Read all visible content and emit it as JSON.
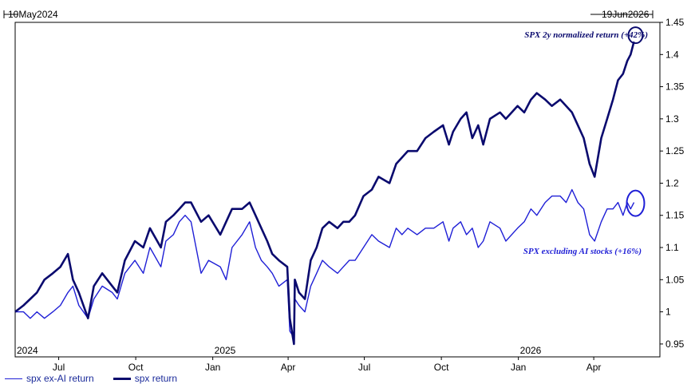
{
  "range": {
    "start": "10May2024",
    "end": "19Jun2026"
  },
  "colors": {
    "spx": "#0a0a6e",
    "exai": "#1f1fd6",
    "axis": "#000000"
  },
  "chart_data": {
    "type": "line",
    "xlim": [
      "2024-05-10",
      "2026-06-19"
    ],
    "ylim": [
      0.93,
      1.45
    ],
    "y_ticks": [
      0.95,
      1,
      1.05,
      1.1,
      1.15,
      1.2,
      1.25,
      1.3,
      1.35,
      1.4,
      1.45
    ],
    "y_tick_labels": [
      "0.95",
      "1",
      "1.05",
      "1.1",
      "1.15",
      "1.2",
      "1.25",
      "1.3",
      "1.35",
      "1.4",
      "1.45"
    ],
    "x_ticks": [
      {
        "date": "2024-07-01",
        "label": "Jul"
      },
      {
        "date": "2024-10-01",
        "label": "Oct"
      },
      {
        "date": "2025-01-01",
        "label": "Jan"
      },
      {
        "date": "2025-04-01",
        "label": "Apr"
      },
      {
        "date": "2025-07-01",
        "label": "Jul"
      },
      {
        "date": "2025-10-01",
        "label": "Oct"
      },
      {
        "date": "2026-01-01",
        "label": "Jan"
      },
      {
        "date": "2026-04-01",
        "label": "Apr"
      }
    ],
    "year_labels": [
      {
        "date": "2024-01-01",
        "label": "2024"
      },
      {
        "date": "2025-01-01",
        "label": "2025"
      },
      {
        "date": "2026-01-01",
        "label": "2026"
      }
    ],
    "grid": false,
    "legend_position": "bottom-left",
    "annotations": [
      {
        "text": "SPX 2y normalized return (+42%)",
        "series": "spx return"
      },
      {
        "text": "SPX excluding AI stocks (+16%)",
        "series": "spx ex-AI return"
      }
    ],
    "series": [
      {
        "name": "spx ex-AI return",
        "x": [
          "2024-05-10",
          "2024-05-20",
          "2024-05-28",
          "2024-06-05",
          "2024-06-14",
          "2024-06-24",
          "2024-07-03",
          "2024-07-12",
          "2024-07-18",
          "2024-07-25",
          "2024-08-05",
          "2024-08-12",
          "2024-08-22",
          "2024-09-03",
          "2024-09-09",
          "2024-09-18",
          "2024-09-30",
          "2024-10-10",
          "2024-10-18",
          "2024-10-31",
          "2024-11-06",
          "2024-11-15",
          "2024-11-22",
          "2024-11-29",
          "2024-12-06",
          "2024-12-18",
          "2024-12-27",
          "2025-01-10",
          "2025-01-17",
          "2025-01-24",
          "2025-02-05",
          "2025-02-14",
          "2025-02-21",
          "2025-02-28",
          "2025-03-07",
          "2025-03-13",
          "2025-03-21",
          "2025-03-31",
          "2025-04-03",
          "2025-04-08",
          "2025-04-09",
          "2025-04-14",
          "2025-04-21",
          "2025-04-28",
          "2025-05-05",
          "2025-05-12",
          "2025-05-20",
          "2025-05-30",
          "2025-06-06",
          "2025-06-13",
          "2025-06-20",
          "2025-06-30",
          "2025-07-10",
          "2025-07-18",
          "2025-07-31",
          "2025-08-08",
          "2025-08-15",
          "2025-08-22",
          "2025-09-02",
          "2025-09-12",
          "2025-09-22",
          "2025-10-03",
          "2025-10-10",
          "2025-10-15",
          "2025-10-24",
          "2025-10-31",
          "2025-11-07",
          "2025-11-14",
          "2025-11-20",
          "2025-11-28",
          "2025-12-10",
          "2025-12-17",
          "2025-12-31",
          "2026-01-08",
          "2026-01-16",
          "2026-01-23",
          "2026-02-02",
          "2026-02-10",
          "2026-02-20",
          "2026-02-27",
          "2026-03-06",
          "2026-03-13",
          "2026-03-20",
          "2026-03-27",
          "2026-04-02",
          "2026-04-10",
          "2026-04-17",
          "2026-04-24",
          "2026-04-30",
          "2026-05-06",
          "2026-05-11",
          "2026-05-15",
          "2026-05-19"
        ],
        "values": [
          1.0,
          1.0,
          0.99,
          1.0,
          0.99,
          1.0,
          1.01,
          1.03,
          1.04,
          1.01,
          0.99,
          1.02,
          1.04,
          1.03,
          1.02,
          1.06,
          1.08,
          1.06,
          1.1,
          1.07,
          1.11,
          1.12,
          1.14,
          1.15,
          1.14,
          1.06,
          1.08,
          1.07,
          1.05,
          1.1,
          1.12,
          1.14,
          1.1,
          1.08,
          1.07,
          1.06,
          1.04,
          1.05,
          0.97,
          0.96,
          1.02,
          1.01,
          1.0,
          1.04,
          1.06,
          1.08,
          1.07,
          1.06,
          1.07,
          1.08,
          1.08,
          1.1,
          1.12,
          1.11,
          1.1,
          1.13,
          1.12,
          1.13,
          1.12,
          1.13,
          1.13,
          1.14,
          1.11,
          1.13,
          1.14,
          1.12,
          1.13,
          1.1,
          1.11,
          1.14,
          1.13,
          1.11,
          1.13,
          1.14,
          1.16,
          1.15,
          1.17,
          1.18,
          1.18,
          1.17,
          1.19,
          1.17,
          1.16,
          1.12,
          1.11,
          1.14,
          1.16,
          1.16,
          1.17,
          1.15,
          1.17,
          1.16,
          1.17
        ]
      },
      {
        "name": "spx return",
        "x": [
          "2024-05-10",
          "2024-05-20",
          "2024-05-28",
          "2024-06-05",
          "2024-06-14",
          "2024-06-24",
          "2024-07-03",
          "2024-07-12",
          "2024-07-18",
          "2024-07-25",
          "2024-08-05",
          "2024-08-12",
          "2024-08-22",
          "2024-09-03",
          "2024-09-09",
          "2024-09-18",
          "2024-09-30",
          "2024-10-10",
          "2024-10-18",
          "2024-10-31",
          "2024-11-06",
          "2024-11-15",
          "2024-11-22",
          "2024-11-29",
          "2024-12-06",
          "2024-12-18",
          "2024-12-27",
          "2025-01-10",
          "2025-01-17",
          "2025-01-24",
          "2025-02-05",
          "2025-02-14",
          "2025-02-21",
          "2025-02-28",
          "2025-03-07",
          "2025-03-13",
          "2025-03-21",
          "2025-03-31",
          "2025-04-03",
          "2025-04-08",
          "2025-04-09",
          "2025-04-14",
          "2025-04-21",
          "2025-04-28",
          "2025-05-05",
          "2025-05-12",
          "2025-05-20",
          "2025-05-30",
          "2025-06-06",
          "2025-06-13",
          "2025-06-20",
          "2025-06-30",
          "2025-07-10",
          "2025-07-18",
          "2025-07-31",
          "2025-08-08",
          "2025-08-15",
          "2025-08-22",
          "2025-09-02",
          "2025-09-12",
          "2025-09-22",
          "2025-10-03",
          "2025-10-10",
          "2025-10-15",
          "2025-10-24",
          "2025-10-31",
          "2025-11-07",
          "2025-11-14",
          "2025-11-20",
          "2025-11-28",
          "2025-12-10",
          "2025-12-17",
          "2025-12-31",
          "2026-01-08",
          "2026-01-16",
          "2026-01-23",
          "2026-02-02",
          "2026-02-10",
          "2026-02-20",
          "2026-02-27",
          "2026-03-06",
          "2026-03-13",
          "2026-03-20",
          "2026-03-27",
          "2026-04-02",
          "2026-04-10",
          "2026-04-17",
          "2026-04-24",
          "2026-04-30",
          "2026-05-06",
          "2026-05-11",
          "2026-05-15",
          "2026-05-19"
        ],
        "values": [
          1.0,
          1.01,
          1.02,
          1.03,
          1.05,
          1.06,
          1.07,
          1.09,
          1.05,
          1.03,
          0.99,
          1.04,
          1.06,
          1.04,
          1.03,
          1.08,
          1.11,
          1.1,
          1.13,
          1.1,
          1.14,
          1.15,
          1.16,
          1.17,
          1.17,
          1.14,
          1.15,
          1.12,
          1.14,
          1.16,
          1.16,
          1.17,
          1.15,
          1.13,
          1.11,
          1.09,
          1.08,
          1.07,
          0.99,
          0.95,
          1.05,
          1.03,
          1.02,
          1.08,
          1.1,
          1.13,
          1.14,
          1.13,
          1.14,
          1.14,
          1.15,
          1.18,
          1.19,
          1.21,
          1.2,
          1.23,
          1.24,
          1.25,
          1.25,
          1.27,
          1.28,
          1.29,
          1.26,
          1.28,
          1.3,
          1.31,
          1.27,
          1.29,
          1.26,
          1.3,
          1.31,
          1.3,
          1.32,
          1.31,
          1.33,
          1.34,
          1.33,
          1.32,
          1.33,
          1.32,
          1.31,
          1.29,
          1.27,
          1.23,
          1.21,
          1.27,
          1.3,
          1.33,
          1.36,
          1.37,
          1.39,
          1.4,
          1.42
        ]
      }
    ]
  },
  "legend": [
    {
      "label": "spx ex-AI return",
      "series": "spx ex-AI return"
    },
    {
      "label": "spx return",
      "series": "spx return"
    }
  ]
}
